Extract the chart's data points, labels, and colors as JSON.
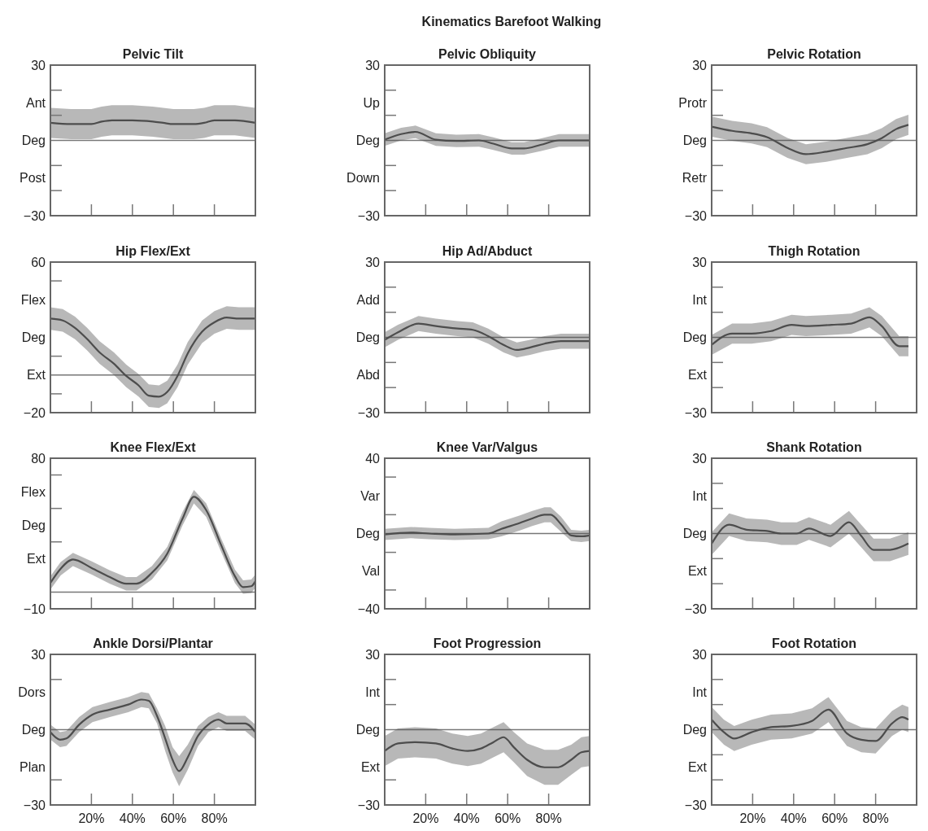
{
  "chart_data": [
    {
      "type": "line",
      "title": "Pelvic Tilt",
      "annotations": [
        "Kinematics Barefoot Walking"
      ],
      "tick_labels": "y",
      "xlim": [
        0,
        100
      ],
      "xticks": [
        {
          "value": 20,
          "label": null
        },
        {
          "value": 40,
          "label": null
        },
        {
          "value": 60,
          "label": null
        },
        {
          "value": 80,
          "label": null
        }
      ],
      "ylim": [
        -30,
        30
      ],
      "yticks": [
        30,
        {
          "value": 20,
          "label": null
        },
        {
          "value": 15,
          "label": "Ant"
        },
        {
          "value": 10,
          "label": null
        },
        {
          "value": 0,
          "label": "Deg"
        },
        {
          "value": -10,
          "label": null
        },
        {
          "value": -15,
          "label": "Post"
        },
        {
          "value": -20,
          "label": null
        },
        {
          "value": -30,
          "label": "−30"
        }
      ],
      "ref_lines": [
        {
          "axis": "y",
          "value": 0,
          "color": "#777777"
        }
      ],
      "series": [
        {
          "color": "#4d4d4d",
          "x": [
            0,
            10,
            20,
            25,
            30,
            40,
            50,
            55,
            60,
            70,
            75,
            80,
            90,
            100
          ],
          "values": [
            7,
            6.5,
            6.5,
            7.5,
            8,
            8,
            7.5,
            7,
            6.5,
            6.5,
            7,
            8,
            8,
            7
          ],
          "lower": [
            1,
            0.5,
            0.5,
            1.5,
            2,
            2,
            1.5,
            1,
            0.5,
            0.5,
            1,
            2,
            2,
            1
          ],
          "upper": [
            13,
            12.5,
            12.5,
            13.5,
            14,
            14,
            13.5,
            13,
            12.5,
            12.5,
            13,
            14,
            14,
            13
          ]
        }
      ]
    },
    {
      "type": "line",
      "title": "Pelvic Obliquity",
      "tick_labels": "y",
      "xlim": [
        0,
        100
      ],
      "xticks": [
        {
          "value": 20,
          "label": null
        },
        {
          "value": 40,
          "label": null
        },
        {
          "value": 60,
          "label": null
        },
        {
          "value": 80,
          "label": null
        }
      ],
      "ylim": [
        -30,
        30
      ],
      "yticks": [
        30,
        {
          "value": 20,
          "label": null
        },
        {
          "value": 15,
          "label": "Up"
        },
        {
          "value": 10,
          "label": null
        },
        {
          "value": 0,
          "label": "Deg"
        },
        {
          "value": -10,
          "label": null
        },
        {
          "value": -15,
          "label": "Down"
        },
        {
          "value": -20,
          "label": null
        },
        {
          "value": -30,
          "label": "−30"
        }
      ],
      "ref_lines": [
        {
          "axis": "y",
          "value": 0,
          "color": "#777777"
        }
      ],
      "series": [
        {
          "color": "#4d4d4d",
          "x": [
            0,
            8,
            15,
            25,
            35,
            46,
            53,
            62,
            68,
            76,
            85,
            91,
            100
          ],
          "values": [
            0.3,
            2.5,
            3.4,
            0.3,
            -0.2,
            0,
            -1.3,
            -3.2,
            -3.2,
            -1.8,
            0,
            0,
            0
          ],
          "lower": [
            -2.2,
            0,
            0.9,
            -2.2,
            -2.7,
            -2.5,
            -3.8,
            -5.7,
            -5.7,
            -4.3,
            -2.5,
            -2.5,
            -2.5
          ],
          "upper": [
            2.8,
            5,
            5.9,
            2.8,
            2.3,
            2.5,
            1.2,
            -0.7,
            -0.7,
            0.7,
            2.5,
            2.5,
            2.5
          ]
        }
      ]
    },
    {
      "type": "line",
      "title": "Pelvic Rotation",
      "tick_labels": "y",
      "xlim": [
        0,
        100
      ],
      "xticks": [
        {
          "value": 20,
          "label": null
        },
        {
          "value": 40,
          "label": null
        },
        {
          "value": 60,
          "label": null
        },
        {
          "value": 80,
          "label": null
        }
      ],
      "ylim": [
        -30,
        30
      ],
      "yticks": [
        30,
        {
          "value": 20,
          "label": null
        },
        {
          "value": 15,
          "label": "Protr"
        },
        {
          "value": 10,
          "label": null
        },
        {
          "value": 0,
          "label": "Deg"
        },
        {
          "value": -10,
          "label": null
        },
        {
          "value": -15,
          "label": "Retr"
        },
        {
          "value": -20,
          "label": null
        },
        {
          "value": -30,
          "label": "−30"
        }
      ],
      "ref_lines": [
        {
          "axis": "y",
          "value": 0,
          "color": "#777777"
        }
      ],
      "series": [
        {
          "color": "#4d4d4d",
          "x": [
            0,
            10,
            19.5,
            27,
            37,
            46,
            56,
            66,
            76,
            83,
            90,
            96
          ],
          "values": [
            5.5,
            3.8,
            2.8,
            1.3,
            -3,
            -5.5,
            -4.5,
            -3,
            -1.5,
            0.9,
            4.5,
            6.2
          ],
          "lower": [
            1.5,
            -0.2,
            -1.2,
            -2.7,
            -7,
            -9.5,
            -8.5,
            -7,
            -5.5,
            -3.1,
            0.5,
            2.2
          ],
          "upper": [
            9.5,
            7.8,
            6.8,
            5.3,
            1,
            -1.5,
            -0.5,
            1,
            2.5,
            4.9,
            8.5,
            10.2
          ]
        }
      ]
    },
    {
      "type": "line",
      "title": "Hip Flex/Ext",
      "tick_labels": "y",
      "xlim": [
        0,
        100
      ],
      "xticks": [
        {
          "value": 20,
          "label": null
        },
        {
          "value": 40,
          "label": null
        },
        {
          "value": 60,
          "label": null
        },
        {
          "value": 80,
          "label": null
        }
      ],
      "ylim": [
        -20,
        60
      ],
      "yticks": [
        60,
        {
          "value": 50,
          "label": null
        },
        {
          "value": 40,
          "label": "Flex"
        },
        {
          "value": 20,
          "label": "Deg"
        },
        {
          "value": 10,
          "label": null
        },
        {
          "value": 0,
          "label": "Ext"
        },
        {
          "value": -10,
          "label": null
        },
        {
          "value": -20,
          "label": "−20"
        }
      ],
      "ref_lines": [
        {
          "axis": "y",
          "value": 0,
          "color": "#777777"
        }
      ],
      "series": [
        {
          "color": "#4d4d4d",
          "x": [
            0,
            6,
            12,
            18,
            24,
            31,
            37,
            43,
            48,
            53,
            57,
            62,
            67,
            74,
            80,
            86,
            92,
            100
          ],
          "values": [
            30,
            29,
            25,
            19,
            12,
            6,
            -0.5,
            -5.5,
            -11,
            -11.5,
            -9,
            -0.5,
            11.5,
            23,
            28,
            30.5,
            30,
            30
          ],
          "lower": [
            24,
            23,
            19,
            13,
            6,
            0,
            -6.5,
            -11.5,
            -17,
            -17.5,
            -15,
            -6.5,
            5.5,
            17,
            22,
            24.5,
            24,
            24
          ],
          "upper": [
            36,
            35,
            31,
            25,
            18,
            12,
            5.5,
            0.5,
            -5,
            -5.5,
            -3,
            5.5,
            17.5,
            29,
            34,
            36.5,
            36,
            36
          ]
        }
      ]
    },
    {
      "type": "line",
      "title": "Hip Ad/Abduct",
      "tick_labels": "y",
      "xlim": [
        0,
        100
      ],
      "xticks": [
        {
          "value": 20,
          "label": null
        },
        {
          "value": 40,
          "label": null
        },
        {
          "value": 60,
          "label": null
        },
        {
          "value": 80,
          "label": null
        }
      ],
      "ylim": [
        -30,
        30
      ],
      "yticks": [
        30,
        {
          "value": 20,
          "label": null
        },
        {
          "value": 15,
          "label": "Add"
        },
        {
          "value": 10,
          "label": null
        },
        {
          "value": 0,
          "label": "Deg"
        },
        {
          "value": -10,
          "label": null
        },
        {
          "value": -15,
          "label": "Abd"
        },
        {
          "value": -20,
          "label": null
        },
        {
          "value": -30,
          "label": "−30"
        }
      ],
      "ref_lines": [
        {
          "axis": "y",
          "value": 0,
          "color": "#777777"
        }
      ],
      "series": [
        {
          "color": "#4d4d4d",
          "x": [
            0,
            6.5,
            16.5,
            25,
            35.5,
            43,
            50.5,
            58,
            64.5,
            71,
            78,
            86,
            100
          ],
          "values": [
            -1,
            2,
            5.5,
            4.5,
            3.5,
            3,
            0.5,
            -3,
            -5,
            -4,
            -2.5,
            -1.5,
            -1.5
          ],
          "lower": [
            -4,
            -1,
            2.5,
            1.5,
            0.5,
            0,
            -2.5,
            -6,
            -8,
            -7,
            -5.5,
            -4.5,
            -4.5
          ],
          "upper": [
            2,
            5,
            8.5,
            7.5,
            6.5,
            6,
            3.5,
            0,
            -2,
            -1,
            0.5,
            1.5,
            1.5
          ]
        }
      ]
    },
    {
      "type": "line",
      "title": "Thigh Rotation",
      "tick_labels": "y",
      "xlim": [
        0,
        100
      ],
      "xticks": [
        {
          "value": 20,
          "label": null
        },
        {
          "value": 40,
          "label": null
        },
        {
          "value": 60,
          "label": null
        },
        {
          "value": 80,
          "label": null
        }
      ],
      "ylim": [
        -30,
        30
      ],
      "yticks": [
        30,
        {
          "value": 20,
          "label": null
        },
        {
          "value": 15,
          "label": "Int"
        },
        {
          "value": 10,
          "label": null
        },
        {
          "value": 0,
          "label": "Deg"
        },
        {
          "value": -10,
          "label": null
        },
        {
          "value": -15,
          "label": "Ext"
        },
        {
          "value": -20,
          "label": null
        },
        {
          "value": -30,
          "label": "−30"
        }
      ],
      "ref_lines": [
        {
          "axis": "y",
          "value": 0,
          "color": "#777777"
        }
      ],
      "series": [
        {
          "color": "#4d4d4d",
          "x": [
            0,
            10,
            19.5,
            29,
            39,
            46,
            58.5,
            68,
            77,
            83,
            91.5,
            96
          ],
          "values": [
            -3,
            1.5,
            1.5,
            2.5,
            5,
            4.5,
            5,
            5.5,
            8,
            4.5,
            -3.5,
            -3.5
          ],
          "lower": [
            -7,
            -2.5,
            -2.5,
            -1.5,
            1,
            0.5,
            1,
            1.5,
            4,
            0.5,
            -7.5,
            -7.5
          ],
          "upper": [
            1,
            5.5,
            5.5,
            6.5,
            9,
            8.5,
            9,
            9.5,
            12,
            8.5,
            0.5,
            0.5
          ]
        }
      ]
    },
    {
      "type": "line",
      "title": "Knee Flex/Ext",
      "tick_labels": "y",
      "xlim": [
        0,
        100
      ],
      "xticks": [
        {
          "value": 20,
          "label": null
        },
        {
          "value": 40,
          "label": null
        },
        {
          "value": 60,
          "label": null
        },
        {
          "value": 80,
          "label": null
        }
      ],
      "ylim": [
        -10,
        80
      ],
      "yticks": [
        80,
        {
          "value": 70,
          "label": null
        },
        {
          "value": 60,
          "label": "Flex"
        },
        {
          "value": 50,
          "label": null
        },
        {
          "value": 40,
          "label": "Deg"
        },
        {
          "value": 30,
          "label": null
        },
        {
          "value": 20,
          "label": "Ext"
        },
        {
          "value": -10,
          "label": "−10"
        }
      ],
      "ref_lines": [
        {
          "axis": "y",
          "value": 0,
          "color": "#777777"
        }
      ],
      "series": [
        {
          "color": "#4d4d4d",
          "x": [
            0,
            5,
            11,
            20,
            29,
            37,
            42,
            49.5,
            57,
            64.5,
            70,
            76,
            83.5,
            90,
            94,
            98,
            100
          ],
          "values": [
            5.5,
            14,
            19.5,
            14.5,
            9,
            5,
            5,
            11.5,
            23,
            44,
            57,
            49,
            27.5,
            9.5,
            3,
            3.5,
            6.5
          ],
          "lower": [
            1.5,
            10,
            15.5,
            10.5,
            5,
            1,
            1,
            7.5,
            19,
            40,
            53,
            45,
            23.5,
            5.5,
            -1,
            -0.5,
            2.5
          ],
          "upper": [
            9.5,
            18,
            23.5,
            18.5,
            13,
            9,
            9,
            15.5,
            27,
            48,
            61,
            53,
            31.5,
            13.5,
            7,
            7.5,
            10.5
          ]
        }
      ]
    },
    {
      "type": "line",
      "title": "Knee Var/Valgus",
      "tick_labels": "y",
      "xlim": [
        0,
        100
      ],
      "xticks": [
        {
          "value": 20,
          "label": null
        },
        {
          "value": 40,
          "label": null
        },
        {
          "value": 60,
          "label": null
        },
        {
          "value": 80,
          "label": null
        }
      ],
      "ylim": [
        -40,
        40
      ],
      "yticks": [
        40,
        {
          "value": 30,
          "label": null
        },
        {
          "value": 20,
          "label": "Var"
        },
        {
          "value": 10,
          "label": null
        },
        {
          "value": 0,
          "label": "Deg"
        },
        {
          "value": -10,
          "label": null
        },
        {
          "value": -20,
          "label": "Val"
        },
        {
          "value": -30,
          "label": null
        },
        {
          "value": -40,
          "label": "−40"
        }
      ],
      "ref_lines": [
        {
          "axis": "y",
          "value": 0,
          "color": "#777777"
        }
      ],
      "series": [
        {
          "color": "#4d4d4d",
          "x": [
            0,
            12.8,
            21.7,
            34,
            50.6,
            57,
            65.7,
            72,
            78,
            81,
            86,
            91,
            96,
            100
          ],
          "values": [
            -0.5,
            0.5,
            0,
            -0.5,
            0,
            2.5,
            5.5,
            8,
            10,
            10,
            5,
            -1,
            -1.5,
            -1
          ],
          "lower": [
            -3.5,
            -2.5,
            -3,
            -3.5,
            -3,
            -1.5,
            1.5,
            4,
            6,
            6,
            1,
            -4,
            -4.5,
            -4
          ],
          "upper": [
            2.5,
            3.5,
            3,
            2.5,
            3,
            6.5,
            9.5,
            12,
            14,
            14,
            9,
            2,
            1.5,
            2
          ]
        }
      ]
    },
    {
      "type": "line",
      "title": "Shank Rotation",
      "tick_labels": "y",
      "xlim": [
        0,
        100
      ],
      "xticks": [
        {
          "value": 20,
          "label": null
        },
        {
          "value": 40,
          "label": null
        },
        {
          "value": 60,
          "label": null
        },
        {
          "value": 80,
          "label": null
        }
      ],
      "ylim": [
        -30,
        30
      ],
      "yticks": [
        30,
        {
          "value": 20,
          "label": null
        },
        {
          "value": 15,
          "label": "Int"
        },
        {
          "value": 10,
          "label": null
        },
        {
          "value": 0,
          "label": "Deg"
        },
        {
          "value": -10,
          "label": null
        },
        {
          "value": -15,
          "label": "Ext"
        },
        {
          "value": -20,
          "label": null
        },
        {
          "value": -30,
          "label": "−30"
        }
      ],
      "ref_lines": [
        {
          "axis": "y",
          "value": 0,
          "color": "#777777"
        }
      ],
      "series": [
        {
          "color": "#4d4d4d",
          "x": [
            0,
            8.5,
            17,
            27,
            34,
            41.5,
            47.5,
            58,
            67,
            73,
            79,
            87,
            96
          ],
          "values": [
            -4,
            3.5,
            1.5,
            1,
            0,
            0,
            2,
            -1,
            4.5,
            -1,
            -6.5,
            -6.5,
            -4
          ],
          "lower": [
            -8.5,
            -1,
            -3,
            -3.5,
            -4.5,
            -4.5,
            -2.5,
            -5.5,
            0,
            -5.5,
            -11,
            -11,
            -8.5
          ],
          "upper": [
            0.5,
            8,
            6,
            5.5,
            4.5,
            4.5,
            6.5,
            3.5,
            9,
            3.5,
            -2,
            -2,
            0.5
          ]
        }
      ]
    },
    {
      "type": "line",
      "title": "Ankle Dorsi/Plantar",
      "xlim": [
        0,
        100
      ],
      "xticks": [
        {
          "value": 20,
          "label": "20%"
        },
        {
          "value": 40,
          "label": "40%"
        },
        {
          "value": 60,
          "label": "60%"
        },
        {
          "value": 80,
          "label": "80%"
        }
      ],
      "ylim": [
        -30,
        30
      ],
      "yticks": [
        30,
        {
          "value": 20,
          "label": null
        },
        {
          "value": 15,
          "label": "Dors"
        },
        {
          "value": 0,
          "label": "Deg"
        },
        {
          "value": -15,
          "label": "Plan"
        },
        {
          "value": -20,
          "label": null
        },
        {
          "value": -30,
          "label": "−30"
        }
      ],
      "ref_lines": [
        {
          "axis": "y",
          "value": 0,
          "color": "#777777"
        }
      ],
      "series": [
        {
          "color": "#4d4d4d",
          "x": [
            0,
            4.7,
            7.8,
            14,
            20.5,
            29,
            38,
            44.4,
            48,
            52,
            56,
            59.6,
            62.8,
            67,
            72,
            77,
            82,
            86,
            95,
            100
          ],
          "values": [
            -1,
            -4,
            -3.5,
            2,
            6,
            8,
            10,
            12,
            11.5,
            5.5,
            -3.5,
            -12,
            -16.5,
            -11,
            -2.5,
            2,
            4,
            2.5,
            2.5,
            -1
          ],
          "lower": [
            -4,
            -7,
            -6.5,
            -1,
            3,
            5,
            7,
            9,
            8.5,
            2.5,
            -8.5,
            -17,
            -22.5,
            -16,
            -6.5,
            -1,
            1,
            -0.5,
            -0.5,
            -4
          ],
          "upper": [
            2,
            -1,
            -0.5,
            5,
            9,
            11,
            13,
            15,
            14.5,
            8.5,
            1.5,
            -7,
            -10.5,
            -6,
            1.5,
            5,
            7,
            5.5,
            5.5,
            2
          ]
        }
      ]
    },
    {
      "type": "line",
      "title": "Foot Progression",
      "xlim": [
        0,
        100
      ],
      "xticks": [
        {
          "value": 20,
          "label": "20%"
        },
        {
          "value": 40,
          "label": "40%"
        },
        {
          "value": 60,
          "label": "60%"
        },
        {
          "value": 80,
          "label": "80%"
        }
      ],
      "ylim": [
        -30,
        30
      ],
      "yticks": [
        30,
        {
          "value": 20,
          "label": null
        },
        {
          "value": 15,
          "label": "Int"
        },
        {
          "value": 10,
          "label": null
        },
        {
          "value": 0,
          "label": "Deg"
        },
        {
          "value": -15,
          "label": "Ext"
        },
        {
          "value": -20,
          "label": null
        },
        {
          "value": -30,
          "label": "−30"
        }
      ],
      "ref_lines": [
        {
          "axis": "y",
          "value": 0,
          "color": "#777777"
        }
      ],
      "series": [
        {
          "color": "#4d4d4d",
          "x": [
            0,
            6.5,
            15,
            25,
            33,
            40.5,
            47,
            53,
            58,
            63,
            69.5,
            78,
            84.6,
            91,
            96,
            100
          ],
          "values": [
            -8.5,
            -5.5,
            -5,
            -5.5,
            -7.5,
            -8.5,
            -7.5,
            -5,
            -3,
            -7,
            -12,
            -15,
            -15,
            -12,
            -9,
            -8.5
          ],
          "lower": [
            -14.5,
            -11.5,
            -11,
            -11.5,
            -13.5,
            -14.5,
            -13.5,
            -11,
            -9,
            -13,
            -18.5,
            -22,
            -22,
            -18,
            -15,
            -14.5
          ],
          "upper": [
            -2.5,
            0.5,
            1,
            0.5,
            -1.5,
            -2.5,
            -1.5,
            1,
            3,
            -1,
            -5.5,
            -8,
            -8,
            -6,
            -3,
            -2.5
          ]
        }
      ]
    },
    {
      "type": "line",
      "title": "Foot Rotation",
      "xlim": [
        0,
        100
      ],
      "xticks": [
        {
          "value": 20,
          "label": "20%"
        },
        {
          "value": 40,
          "label": "40%"
        },
        {
          "value": 60,
          "label": "60%"
        },
        {
          "value": 80,
          "label": "80%"
        }
      ],
      "ylim": [
        -30,
        30
      ],
      "yticks": [
        30,
        {
          "value": 20,
          "label": null
        },
        {
          "value": 15,
          "label": "Int"
        },
        {
          "value": 10,
          "label": null
        },
        {
          "value": 0,
          "label": "Deg"
        },
        {
          "value": -10,
          "label": null
        },
        {
          "value": -15,
          "label": "Ext"
        },
        {
          "value": -20,
          "label": null
        },
        {
          "value": -30,
          "label": "−30"
        }
      ],
      "ref_lines": [
        {
          "axis": "y",
          "value": 0,
          "color": "#777777"
        }
      ],
      "series": [
        {
          "color": "#4d4d4d",
          "x": [
            0,
            6,
            11,
            19.5,
            29,
            39,
            49,
            57,
            66,
            73,
            80,
            88,
            93,
            96
          ],
          "values": [
            4,
            -1,
            -3.5,
            -1,
            1,
            1.5,
            3.5,
            8,
            -1.5,
            -4,
            -4.5,
            2.5,
            5,
            4
          ],
          "lower": [
            -1,
            -6,
            -8.5,
            -6,
            -4,
            -3.5,
            -1.5,
            3,
            -6.5,
            -9,
            -9.5,
            -2.5,
            0,
            -1
          ],
          "upper": [
            9,
            4,
            1.5,
            4,
            6,
            6.5,
            8.5,
            13,
            3.5,
            1,
            0.5,
            7.5,
            10,
            9
          ]
        }
      ]
    }
  ]
}
